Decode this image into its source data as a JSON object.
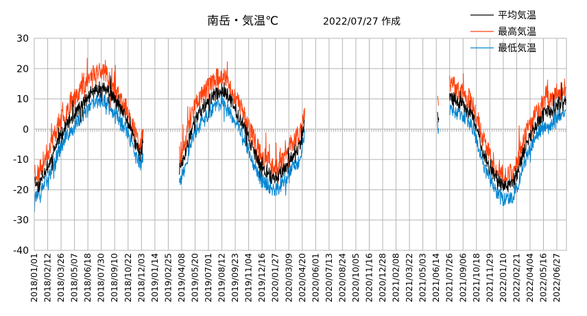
{
  "chart_data": {
    "type": "line",
    "title": "南岳・気温℃",
    "subtitle": "2022/07/27 作成",
    "xlabel": "",
    "ylabel": "",
    "ylim": [
      -40,
      30
    ],
    "y_ticks": [
      30,
      20,
      10,
      0,
      -10,
      -20,
      -30,
      -40
    ],
    "x_range": [
      "2018/01/01",
      "2022/07/27"
    ],
    "x_tick_labels": [
      "2018/01/01",
      "2018/02/12",
      "2018/03/26",
      "2018/05/07",
      "2018/06/18",
      "2018/07/30",
      "2018/09/10",
      "2018/10/22",
      "2018/12/03",
      "2019/01/14",
      "2019/02/25",
      "2019/04/08",
      "2019/05/20",
      "2019/07/01",
      "2019/08/12",
      "2019/09/23",
      "2019/11/04",
      "2019/12/16",
      "2020/01/27",
      "2020/03/09",
      "2020/04/20",
      "2020/06/01",
      "2020/07/13",
      "2020/08/24",
      "2020/10/05",
      "2020/11/16",
      "2020/12/28",
      "2021/02/08",
      "2021/03/22",
      "2021/05/03",
      "2021/06/14",
      "2021/07/26",
      "2021/09/06",
      "2021/10/18",
      "2021/11/29",
      "2022/01/10",
      "2022/02/21",
      "2022/04/04",
      "2022/05/16",
      "2022/06/27"
    ],
    "grid": true,
    "legend_position": "top-right",
    "series": [
      {
        "name": "平均気温",
        "color": "#000000",
        "x": [
          "2018/01/01",
          "2018/01/15",
          "2018/02/01",
          "2018/02/15",
          "2018/03/01",
          "2018/03/15",
          "2018/04/01",
          "2018/04/15",
          "2018/05/01",
          "2018/05/15",
          "2018/06/01",
          "2018/06/15",
          "2018/07/01",
          "2018/07/15",
          "2018/08/01",
          "2018/08/15",
          "2018/09/01",
          "2018/09/15",
          "2018/10/01",
          "2018/10/15",
          "2018/11/01",
          "2018/11/15",
          "2018/12/01",
          "2018/12/08",
          null,
          "2019/04/01",
          "2019/04/15",
          "2019/05/01",
          "2019/05/15",
          "2019/06/01",
          "2019/06/15",
          "2019/07/01",
          "2019/07/15",
          "2019/08/01",
          "2019/08/15",
          "2019/09/01",
          "2019/09/15",
          "2019/10/01",
          "2019/10/15",
          "2019/11/01",
          "2019/11/15",
          "2019/12/01",
          "2019/12/15",
          "2020/01/01",
          "2020/01/15",
          "2020/02/01",
          "2020/02/15",
          "2020/03/01",
          "2020/03/15",
          "2020/04/01",
          "2020/04/15",
          "2020/04/28",
          null,
          "2021/06/18",
          "2021/06/22",
          null,
          "2021/07/26",
          "2021/08/10",
          "2021/08/25",
          "2021/09/10",
          "2021/09/25",
          "2021/10/10",
          "2021/10/25",
          "2021/11/10",
          "2021/11/25",
          "2021/12/10",
          "2021/12/25",
          "2022/01/10",
          "2022/01/25",
          "2022/02/10",
          "2022/02/25",
          "2022/03/10",
          "2022/03/25",
          "2022/04/10",
          "2022/04/25",
          "2022/05/10",
          "2022/05/25",
          "2022/06/10",
          "2022/06/25",
          "2022/07/10",
          "2022/07/25"
        ],
        "y": [
          -17,
          -19,
          -14,
          -12,
          -8,
          -4,
          -1,
          2,
          4,
          6,
          8,
          10,
          12,
          13,
          14,
          13,
          11,
          9,
          6,
          4,
          -1,
          -5,
          -9,
          -4,
          null,
          -13,
          -10,
          -3,
          2,
          5,
          7,
          9,
          11,
          12,
          13,
          11,
          8,
          5,
          2,
          -2,
          -6,
          -10,
          -13,
          -14,
          -16,
          -16,
          -14,
          -12,
          -9,
          -8,
          -5,
          3,
          null,
          4,
          3,
          null,
          10,
          10,
          9,
          8,
          6,
          3,
          -2,
          -8,
          -12,
          -15,
          -17,
          -19,
          -19,
          -18,
          -14,
          -9,
          -5,
          -1,
          2,
          4,
          6,
          5,
          8,
          9,
          10
        ],
        "noise": 2.2,
        "seed": 11
      },
      {
        "name": "最高気温",
        "color": "#ff420e",
        "x": [
          "2018/01/01",
          "2018/01/15",
          "2018/02/01",
          "2018/02/15",
          "2018/03/01",
          "2018/03/15",
          "2018/04/01",
          "2018/04/15",
          "2018/05/01",
          "2018/05/15",
          "2018/06/01",
          "2018/06/15",
          "2018/07/01",
          "2018/07/15",
          "2018/08/01",
          "2018/08/15",
          "2018/09/01",
          "2018/09/15",
          "2018/10/01",
          "2018/10/15",
          "2018/11/01",
          "2018/11/15",
          "2018/12/01",
          "2018/12/08",
          null,
          "2019/04/01",
          "2019/04/15",
          "2019/05/01",
          "2019/05/15",
          "2019/06/01",
          "2019/06/15",
          "2019/07/01",
          "2019/07/15",
          "2019/08/01",
          "2019/08/15",
          "2019/09/01",
          "2019/09/15",
          "2019/10/01",
          "2019/10/15",
          "2019/11/01",
          "2019/11/15",
          "2019/12/01",
          "2019/12/15",
          "2020/01/01",
          "2020/01/15",
          "2020/02/01",
          "2020/02/15",
          "2020/03/01",
          "2020/03/15",
          "2020/04/01",
          "2020/04/15",
          "2020/04/28",
          null,
          "2021/06/18",
          "2021/06/22",
          null,
          "2021/07/26",
          "2021/08/10",
          "2021/08/25",
          "2021/09/10",
          "2021/09/25",
          "2021/10/10",
          "2021/10/25",
          "2021/11/10",
          "2021/11/25",
          "2021/12/10",
          "2021/12/25",
          "2022/01/10",
          "2022/01/25",
          "2022/02/10",
          "2022/02/25",
          "2022/03/10",
          "2022/03/25",
          "2022/04/10",
          "2022/04/25",
          "2022/05/10",
          "2022/05/25",
          "2022/06/10",
          "2022/06/25",
          "2022/07/10",
          "2022/07/25"
        ],
        "y": [
          -13,
          -15,
          -10,
          -7,
          -3,
          1,
          4,
          7,
          10,
          12,
          14,
          16,
          18,
          19,
          20,
          18,
          15,
          12,
          9,
          7,
          2,
          -2,
          -6,
          0,
          null,
          -9,
          -5,
          1,
          7,
          10,
          12,
          14,
          16,
          17,
          18,
          15,
          12,
          9,
          6,
          2,
          -2,
          -6,
          -9,
          -10,
          -12,
          -12,
          -10,
          -8,
          -5,
          -3,
          -1,
          7,
          null,
          9,
          8,
          null,
          15,
          14,
          13,
          12,
          10,
          7,
          2,
          -4,
          -8,
          -11,
          -13,
          -15,
          -15,
          -14,
          -10,
          -5,
          -1,
          3,
          6,
          8,
          10,
          9,
          12,
          13,
          14
        ],
        "noise": 3.4,
        "seed": 23
      },
      {
        "name": "最低気温",
        "color": "#0084d1",
        "x": [
          "2018/01/01",
          "2018/01/15",
          "2018/02/01",
          "2018/02/15",
          "2018/03/01",
          "2018/03/15",
          "2018/04/01",
          "2018/04/15",
          "2018/05/01",
          "2018/05/15",
          "2018/06/01",
          "2018/06/15",
          "2018/07/01",
          "2018/07/15",
          "2018/08/01",
          "2018/08/15",
          "2018/09/01",
          "2018/09/15",
          "2018/10/01",
          "2018/10/15",
          "2018/11/01",
          "2018/11/15",
          "2018/12/01",
          "2018/12/08",
          null,
          "2019/04/01",
          "2019/04/15",
          "2019/05/01",
          "2019/05/15",
          "2019/06/01",
          "2019/06/15",
          "2019/07/01",
          "2019/07/15",
          "2019/08/01",
          "2019/08/15",
          "2019/09/01",
          "2019/09/15",
          "2019/10/01",
          "2019/10/15",
          "2019/11/01",
          "2019/11/15",
          "2019/12/01",
          "2019/12/15",
          "2020/01/01",
          "2020/01/15",
          "2020/02/01",
          "2020/02/15",
          "2020/03/01",
          "2020/03/15",
          "2020/04/01",
          "2020/04/15",
          "2020/04/28",
          null,
          "2021/06/18",
          "2021/06/22",
          null,
          "2021/07/26",
          "2021/08/10",
          "2021/08/25",
          "2021/09/10",
          "2021/09/25",
          "2021/10/10",
          "2021/10/25",
          "2021/11/10",
          "2021/11/25",
          "2021/12/10",
          "2021/12/25",
          "2022/01/10",
          "2022/01/25",
          "2022/02/10",
          "2022/02/25",
          "2022/03/10",
          "2022/03/25",
          "2022/04/10",
          "2022/04/25",
          "2022/05/10",
          "2022/05/25",
          "2022/06/10",
          "2022/06/25",
          "2022/07/10",
          "2022/07/25"
        ],
        "y": [
          -21,
          -23,
          -18,
          -16,
          -12,
          -8,
          -5,
          -2,
          0,
          2,
          4,
          6,
          8,
          9,
          10,
          9,
          7,
          5,
          2,
          0,
          -5,
          -9,
          -12,
          -8,
          null,
          -17,
          -14,
          -7,
          -2,
          1,
          3,
          5,
          7,
          8,
          9,
          7,
          4,
          1,
          -2,
          -6,
          -10,
          -14,
          -17,
          -18,
          -20,
          -20,
          -18,
          -16,
          -13,
          -12,
          -9,
          -1,
          null,
          1,
          0,
          null,
          6,
          6,
          5,
          4,
          2,
          -1,
          -6,
          -12,
          -16,
          -19,
          -21,
          -23,
          -23,
          -22,
          -18,
          -13,
          -9,
          -5,
          -2,
          0,
          2,
          1,
          4,
          5,
          6
        ],
        "noise": 2.4,
        "seed": 37
      }
    ]
  }
}
